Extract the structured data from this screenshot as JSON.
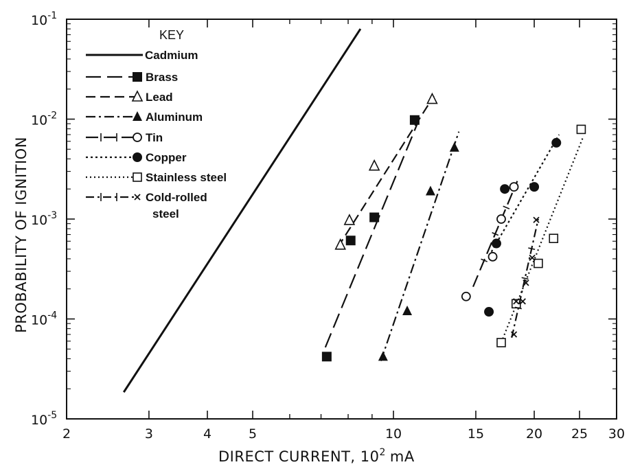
{
  "chart_data": {
    "type": "scatter",
    "title": "",
    "xlabel": "DIRECT CURRENT, 10",
    "xlabel_sup": "2",
    "xlabel_unit": "mA",
    "ylabel": "PROBABILITY OF IGNITION",
    "xscale": "log",
    "yscale": "log",
    "xlim": [
      2,
      30
    ],
    "ylim": [
      1e-05,
      0.1
    ],
    "grid": false,
    "legend_title": "KEY",
    "legend_position": "top-left",
    "x_ticks": [
      {
        "value": 2,
        "label": "2"
      },
      {
        "value": 3,
        "label": "3"
      },
      {
        "value": 4,
        "label": "4"
      },
      {
        "value": 5,
        "label": "5"
      },
      {
        "value": 10,
        "label": "10"
      },
      {
        "value": 15,
        "label": "15"
      },
      {
        "value": 20,
        "label": "20"
      },
      {
        "value": 25,
        "label": "25"
      },
      {
        "value": 30,
        "label": "30"
      }
    ],
    "x_minor_ticks": [
      6,
      7,
      8,
      9
    ],
    "y_ticks": [
      {
        "value": 0.1,
        "base": "10",
        "exp": "-1"
      },
      {
        "value": 0.01,
        "base": "10",
        "exp": "-2"
      },
      {
        "value": 0.001,
        "base": "10",
        "exp": "-3"
      },
      {
        "value": 0.0001,
        "base": "10",
        "exp": "-4"
      },
      {
        "value": 1e-05,
        "base": "10",
        "exp": "-5"
      }
    ],
    "series": [
      {
        "name": "Cadmium",
        "line": "solid",
        "marker": "none",
        "points": [],
        "fit": [
          [
            2.65,
            1.85e-05
          ],
          [
            8.5,
            0.08
          ]
        ]
      },
      {
        "name": "Brass",
        "line": "longdash",
        "marker": "filled-square",
        "points": [
          [
            7.2,
            4.2e-05
          ],
          [
            8.1,
            0.00061
          ],
          [
            9.1,
            0.00104
          ],
          [
            11.1,
            0.0098
          ]
        ],
        "fit": [
          [
            7.15,
            5.2e-05
          ],
          [
            11.3,
            0.0095
          ]
        ]
      },
      {
        "name": "Lead",
        "line": "dash",
        "marker": "open-triangle",
        "points": [
          [
            7.7,
            0.00055
          ],
          [
            8.05,
            0.00097
          ],
          [
            9.1,
            0.0034
          ],
          [
            12.1,
            0.0158
          ]
        ],
        "fit": [
          [
            7.6,
            0.00052
          ],
          [
            12.2,
            0.017
          ]
        ]
      },
      {
        "name": "Aluminum",
        "line": "dashdot",
        "marker": "filled-triangle",
        "points": [
          [
            9.5,
            4.2e-05
          ],
          [
            10.7,
            0.00012
          ],
          [
            12.0,
            0.0019
          ],
          [
            13.5,
            0.0052
          ]
        ],
        "fit": [
          [
            9.4,
            3.8e-05
          ],
          [
            13.8,
            0.0075
          ]
        ]
      },
      {
        "name": "Tin",
        "line": "dash-bar",
        "marker": "open-circle",
        "points": [
          [
            14.3,
            0.000168
          ],
          [
            16.3,
            0.00042
          ],
          [
            17.0,
            0.001
          ],
          [
            18.1,
            0.0021
          ]
        ],
        "fit": [
          [
            14.8,
            0.00021
          ],
          [
            18.4,
            0.0024
          ]
        ]
      },
      {
        "name": "Copper",
        "line": "dotted",
        "marker": "filled-circle",
        "points": [
          [
            16.0,
            0.000118
          ],
          [
            16.6,
            0.00057
          ],
          [
            17.3,
            0.002
          ],
          [
            20.0,
            0.0021
          ],
          [
            22.3,
            0.0058
          ]
        ],
        "fit": [
          [
            16.2,
            0.00047
          ],
          [
            22.6,
            0.007
          ]
        ]
      },
      {
        "name": "Stainless steel",
        "line": "fine-dotted",
        "marker": "open-square",
        "points": [
          [
            17.0,
            5.8e-05
          ],
          [
            18.3,
            0.000142
          ],
          [
            20.4,
            0.00036
          ],
          [
            22.0,
            0.00064
          ],
          [
            25.2,
            0.0079
          ]
        ],
        "fit": [
          [
            17.0,
            5.8e-05
          ],
          [
            25.5,
            0.0068
          ]
        ]
      },
      {
        "name": "Cold-rolled steel",
        "line": "dash-dot-bar",
        "marker": "x",
        "points": [
          [
            18.1,
            7e-05
          ],
          [
            18.3,
            0.00015
          ],
          [
            18.9,
            0.00015
          ],
          [
            19.2,
            0.00023
          ],
          [
            19.8,
            0.00041
          ],
          [
            20.2,
            0.00098
          ]
        ],
        "fit": [
          [
            17.9,
            6.5e-05
          ],
          [
            20.4,
            0.001
          ]
        ]
      }
    ]
  }
}
